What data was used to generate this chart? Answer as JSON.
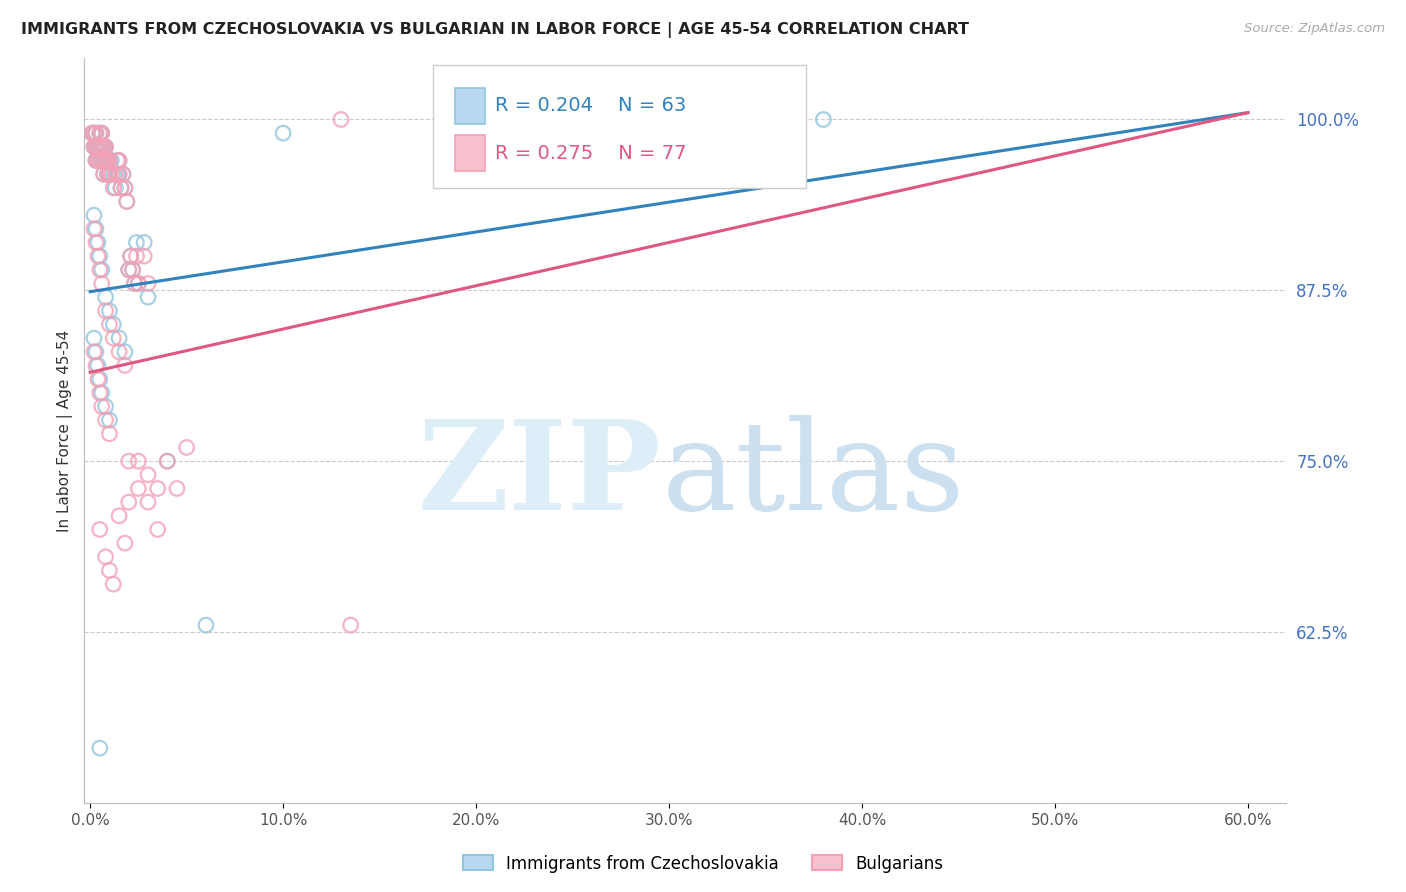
{
  "title": "IMMIGRANTS FROM CZECHOSLOVAKIA VS BULGARIAN IN LABOR FORCE | AGE 45-54 CORRELATION CHART",
  "source": "Source: ZipAtlas.com",
  "ylabel": "In Labor Force | Age 45-54",
  "xlim": [
    -0.003,
    0.62
  ],
  "ylim": [
    0.5,
    1.045
  ],
  "yticks": [
    0.625,
    0.75,
    0.875,
    1.0
  ],
  "ytick_labels": [
    "62.5%",
    "75.0%",
    "87.5%",
    "100.0%"
  ],
  "xticks": [
    0.0,
    0.1,
    0.2,
    0.3,
    0.4,
    0.5,
    0.6
  ],
  "xtick_labels": [
    "0.0%",
    "10.0%",
    "20.0%",
    "30.0%",
    "40.0%",
    "50.0%",
    "60.0%"
  ],
  "blue_R": 0.204,
  "blue_N": 63,
  "pink_R": 0.275,
  "pink_N": 77,
  "blue_color": "#92c5de",
  "pink_color": "#f4a0b5",
  "blue_line_color": "#3182bd",
  "pink_line_color": "#e05880",
  "legend_label_blue": "Immigrants from Czechoslovakia",
  "legend_label_pink": "Bulgarians",
  "blue_line_x": [
    0.0,
    0.6
  ],
  "blue_line_y": [
    0.874,
    1.005
  ],
  "pink_line_x": [
    0.0,
    0.6
  ],
  "pink_line_y": [
    0.815,
    1.005
  ],
  "blue_scatter_x": [
    0.001,
    0.002,
    0.002,
    0.003,
    0.003,
    0.003,
    0.004,
    0.004,
    0.005,
    0.005,
    0.005,
    0.006,
    0.006,
    0.006,
    0.007,
    0.007,
    0.007,
    0.008,
    0.008,
    0.009,
    0.009,
    0.01,
    0.01,
    0.011,
    0.012,
    0.013,
    0.014,
    0.015,
    0.015,
    0.016,
    0.017,
    0.018,
    0.019,
    0.02,
    0.021,
    0.022,
    0.023,
    0.024,
    0.025,
    0.028,
    0.03,
    0.002,
    0.003,
    0.004,
    0.005,
    0.006,
    0.008,
    0.01,
    0.012,
    0.015,
    0.018,
    0.002,
    0.003,
    0.004,
    0.005,
    0.006,
    0.008,
    0.01,
    0.04,
    0.06,
    0.1,
    0.38,
    0.005
  ],
  "blue_scatter_y": [
    0.99,
    0.99,
    0.98,
    0.99,
    0.98,
    0.97,
    0.98,
    0.97,
    0.99,
    0.98,
    0.97,
    0.99,
    0.98,
    0.97,
    0.98,
    0.97,
    0.96,
    0.98,
    0.97,
    0.97,
    0.96,
    0.97,
    0.96,
    0.97,
    0.96,
    0.95,
    0.96,
    0.97,
    0.96,
    0.95,
    0.96,
    0.95,
    0.94,
    0.89,
    0.9,
    0.89,
    0.88,
    0.91,
    0.88,
    0.91,
    0.87,
    0.93,
    0.92,
    0.91,
    0.9,
    0.89,
    0.87,
    0.86,
    0.85,
    0.84,
    0.83,
    0.84,
    0.83,
    0.82,
    0.81,
    0.8,
    0.79,
    0.78,
    0.75,
    0.63,
    0.99,
    1.0,
    0.54
  ],
  "pink_scatter_x": [
    0.001,
    0.002,
    0.002,
    0.003,
    0.003,
    0.003,
    0.004,
    0.004,
    0.005,
    0.005,
    0.005,
    0.006,
    0.006,
    0.006,
    0.007,
    0.007,
    0.007,
    0.008,
    0.008,
    0.009,
    0.009,
    0.01,
    0.01,
    0.011,
    0.012,
    0.013,
    0.014,
    0.015,
    0.015,
    0.016,
    0.017,
    0.018,
    0.019,
    0.02,
    0.021,
    0.022,
    0.023,
    0.024,
    0.025,
    0.028,
    0.03,
    0.002,
    0.003,
    0.004,
    0.005,
    0.006,
    0.008,
    0.01,
    0.012,
    0.015,
    0.018,
    0.002,
    0.003,
    0.004,
    0.005,
    0.006,
    0.008,
    0.01,
    0.02,
    0.025,
    0.03,
    0.035,
    0.04,
    0.045,
    0.05,
    0.005,
    0.008,
    0.01,
    0.012,
    0.015,
    0.018,
    0.02,
    0.13,
    0.135,
    0.025,
    0.03,
    0.035
  ],
  "pink_scatter_y": [
    0.99,
    0.99,
    0.98,
    0.99,
    0.98,
    0.97,
    0.98,
    0.97,
    0.99,
    0.98,
    0.97,
    0.99,
    0.98,
    0.97,
    0.98,
    0.97,
    0.96,
    0.98,
    0.97,
    0.97,
    0.96,
    0.97,
    0.96,
    0.96,
    0.95,
    0.96,
    0.97,
    0.97,
    0.96,
    0.95,
    0.96,
    0.95,
    0.94,
    0.89,
    0.9,
    0.89,
    0.88,
    0.9,
    0.88,
    0.9,
    0.88,
    0.92,
    0.91,
    0.9,
    0.89,
    0.88,
    0.86,
    0.85,
    0.84,
    0.83,
    0.82,
    0.83,
    0.82,
    0.81,
    0.8,
    0.79,
    0.78,
    0.77,
    0.75,
    0.73,
    0.72,
    0.7,
    0.75,
    0.73,
    0.76,
    0.7,
    0.68,
    0.67,
    0.66,
    0.71,
    0.69,
    0.72,
    1.0,
    0.63,
    0.75,
    0.74,
    0.73
  ]
}
